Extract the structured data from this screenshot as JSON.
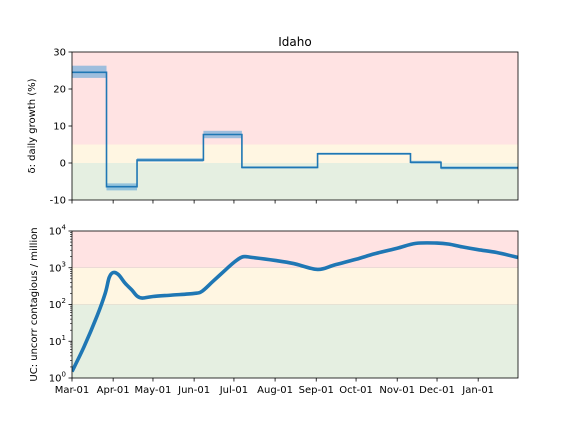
{
  "chart_data": [
    {
      "type": "line",
      "title": "Idaho",
      "ylabel": "δ: daily growth (%)",
      "ylim": [
        -10,
        30
      ],
      "yticks": [
        -10,
        0,
        10,
        20,
        30
      ],
      "xlim": [
        "2020-03-01",
        "2021-01-31"
      ],
      "zones": [
        {
          "from": 5,
          "to": 30,
          "color": "#ffe3e3"
        },
        {
          "from": 0,
          "to": 5,
          "color": "#fff6e2"
        },
        {
          "from": -10,
          "to": 0,
          "color": "#e5efe1"
        }
      ],
      "line_color": "#1f77b4",
      "band_color": "#5da5d9",
      "series": [
        {
          "type": "step",
          "segments": [
            {
              "start": "2020-03-01",
              "end": "2020-03-27",
              "value": 24.5,
              "low": 23.0,
              "high": 26.3
            },
            {
              "start": "2020-03-27",
              "end": "2020-04-19",
              "value": -6.4,
              "low": -7.4,
              "high": -5.5
            },
            {
              "start": "2020-04-19",
              "end": "2020-06-08",
              "value": 0.8,
              "low": 0.3,
              "high": 1.3
            },
            {
              "start": "2020-06-08",
              "end": "2020-07-07",
              "value": 7.7,
              "low": 6.7,
              "high": 8.7
            },
            {
              "start": "2020-07-07",
              "end": "2020-09-02",
              "value": -1.2,
              "low": -1.5,
              "high": -0.9
            },
            {
              "start": "2020-09-02",
              "end": "2020-11-11",
              "value": 2.5,
              "low": 2.2,
              "high": 2.8
            },
            {
              "start": "2020-11-11",
              "end": "2020-12-04",
              "value": 0.2,
              "low": -0.2,
              "high": 0.6
            },
            {
              "start": "2020-12-04",
              "end": "2021-01-31",
              "value": -1.3,
              "low": -1.7,
              "high": -0.9
            }
          ]
        }
      ]
    },
    {
      "type": "line",
      "ylabel": "UC: uncorr contagious / million",
      "yscale": "log",
      "ylim": [
        1,
        10000
      ],
      "yticks": [
        "10^0",
        "10^1",
        "10^2",
        "10^3",
        "10^4"
      ],
      "xlim": [
        "2020-03-01",
        "2021-01-31"
      ],
      "xticks": [
        "Mar-01",
        "Apr-01",
        "May-01",
        "Jun-01",
        "Jul-01",
        "Aug-01",
        "Sep-01",
        "Oct-01",
        "Nov-01",
        "Dec-01",
        "Jan-01"
      ],
      "zones": [
        {
          "from": 1000,
          "to": 10000,
          "color": "#ffe3e3"
        },
        {
          "from": 100,
          "to": 1000,
          "color": "#fff6e2"
        },
        {
          "from": 1,
          "to": 100,
          "color": "#e5efe1"
        }
      ],
      "line_color": "#1f77b4",
      "series": [
        {
          "x": [
            "2020-03-01",
            "2020-03-10",
            "2020-03-20",
            "2020-03-26",
            "2020-03-29",
            "2020-04-01",
            "2020-04-05",
            "2020-04-10",
            "2020-04-15",
            "2020-04-19",
            "2020-04-23",
            "2020-05-01",
            "2020-05-15",
            "2020-06-01",
            "2020-06-07",
            "2020-06-15",
            "2020-06-25",
            "2020-07-02",
            "2020-07-08",
            "2020-07-15",
            "2020-08-01",
            "2020-08-15",
            "2020-09-02",
            "2020-09-15",
            "2020-10-01",
            "2020-10-15",
            "2020-11-01",
            "2020-11-15",
            "2020-12-01",
            "2020-12-10",
            "2020-12-20",
            "2021-01-01",
            "2021-01-15",
            "2021-01-31"
          ],
          "y": [
            1.5,
            7,
            50,
            200,
            540,
            740,
            650,
            380,
            250,
            170,
            150,
            165,
            180,
            200,
            230,
            420,
            900,
            1500,
            2000,
            1900,
            1580,
            1300,
            900,
            1200,
            1700,
            2400,
            3400,
            4600,
            4700,
            4400,
            3700,
            3100,
            2600,
            1900
          ]
        }
      ]
    }
  ]
}
